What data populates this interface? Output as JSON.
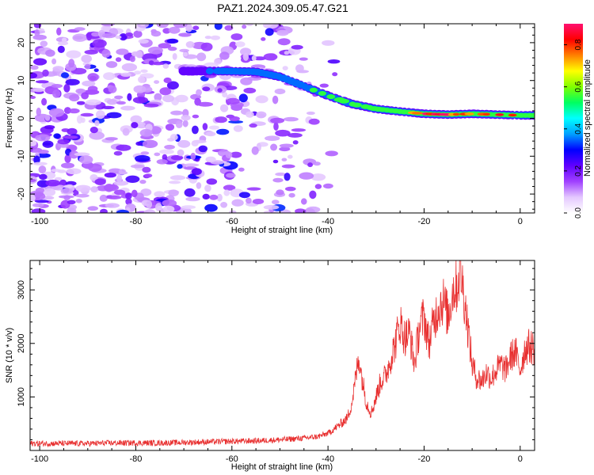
{
  "figure": {
    "title": "PAZ1.2024.309.05.47.G21"
  },
  "chart_data": [
    {
      "type": "heatmap",
      "xlabel": "Height of straight line (km)",
      "ylabel": "Frequency (Hz)",
      "xlim": [
        -102,
        3
      ],
      "ylim": [
        -25,
        25
      ],
      "xticks": [
        -100,
        -80,
        -60,
        -40,
        -20,
        0
      ],
      "yticks": [
        -20,
        -10,
        0,
        10,
        20
      ],
      "colorbar": {
        "label": "Normalized spectral amplitude",
        "range": [
          0.0,
          0.9
        ],
        "ticks": [
          0.0,
          0.2,
          0.4,
          0.6,
          0.8
        ],
        "colormap": [
          "#ffffff",
          "#e4c8ff",
          "#a040ff",
          "#6000ff",
          "#0000ff",
          "#00a0ff",
          "#00ffff",
          "#00ff60",
          "#80ff00",
          "#ffff00",
          "#ff8000",
          "#ff0000",
          "#ff1070"
        ]
      },
      "ridge": {
        "description_points_x": [
          -70,
          -62,
          -55,
          -50,
          -45,
          -40,
          -35,
          -30,
          -25,
          -20,
          -15,
          -10,
          -5,
          0,
          3
        ],
        "frequency": [
          12.5,
          12.5,
          12.3,
          11.0,
          8.5,
          6.0,
          3.8,
          2.5,
          1.8,
          1.2,
          1.0,
          1.2,
          1.0,
          0.8,
          0.8
        ],
        "amplitude": [
          0.25,
          0.35,
          0.45,
          0.4,
          0.45,
          0.5,
          0.55,
          0.6,
          0.65,
          0.85,
          0.8,
          0.7,
          0.75,
          0.7,
          0.65
        ]
      },
      "noise_region_x": [
        -102,
        -38
      ],
      "grid": false
    },
    {
      "type": "line",
      "xlabel": "Height of straight line (km)",
      "ylabel": "SNR (10 * v/v)",
      "xlim": [
        -102,
        3
      ],
      "ylim": [
        0,
        3550
      ],
      "xticks": [
        -100,
        -80,
        -60,
        -40,
        -20,
        0
      ],
      "yticks": [
        1000,
        2000,
        3000
      ],
      "series": [
        {
          "color": "#e83030",
          "x": [
            -102,
            -95,
            -90,
            -85,
            -80,
            -75,
            -70,
            -65,
            -60,
            -55,
            -50,
            -45,
            -42,
            -40,
            -38,
            -36,
            -35,
            -34,
            -33.5,
            -33,
            -32,
            -31,
            -30,
            -29,
            -28,
            -27,
            -26,
            -25,
            -24,
            -23,
            -22,
            -21,
            -20,
            -19,
            -18,
            -17,
            -16,
            -15,
            -14,
            -13,
            -12.5,
            -12,
            -11,
            -10,
            -9,
            -8,
            -7,
            -6,
            -5,
            -4,
            -3,
            -2,
            -1,
            0,
            1,
            2,
            3
          ],
          "y": [
            130,
            130,
            130,
            140,
            140,
            140,
            150,
            160,
            170,
            180,
            200,
            230,
            260,
            320,
            450,
            600,
            900,
            1500,
            1750,
            1400,
            900,
            700,
            1000,
            1300,
            1400,
            1700,
            2000,
            2400,
            2100,
            2200,
            1600,
            2300,
            2500,
            2000,
            2400,
            2700,
            2800,
            2500,
            3000,
            3100,
            3450,
            3100,
            2400,
            1600,
            1350,
            1300,
            1450,
            1350,
            1500,
            1600,
            1500,
            1750,
            1850,
            1500,
            1900,
            1950,
            1900
          ]
        }
      ],
      "grid": false
    }
  ]
}
